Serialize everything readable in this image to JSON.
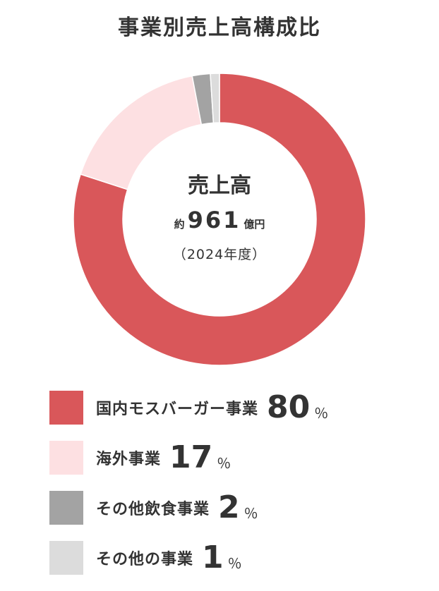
{
  "chart_data": {
    "type": "pie",
    "title": "事業別売上高構成比",
    "center": {
      "label": "売上高",
      "value_prefix": "約",
      "value": "961",
      "value_unit": "億円",
      "note": "（2024年度）"
    },
    "unit_label": "％",
    "legend_placement": "bottom",
    "series": [
      {
        "name": "国内モスバーガー事業",
        "value": 80,
        "color": "#d9575a"
      },
      {
        "name": "海外事業",
        "value": 17,
        "color": "#fde0e2"
      },
      {
        "name": "その他飲食事業",
        "value": 2,
        "color": "#a3a3a3"
      },
      {
        "name": "その他の事業",
        "value": 1,
        "color": "#dcdcdc"
      }
    ]
  }
}
